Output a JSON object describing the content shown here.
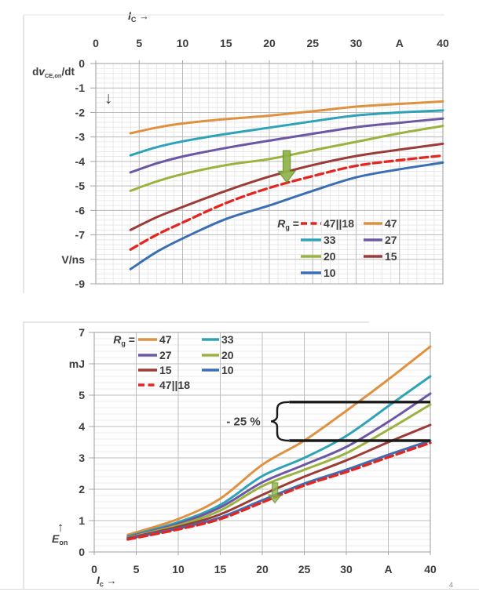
{
  "page": {
    "footnote": "4"
  },
  "chart_data": [
    {
      "id": "dvdt",
      "type": "line",
      "title": "Turn-on collector-emitter voltage slope vs collector current",
      "xlabel": {
        "main": "I",
        "sub": "C",
        "arrow": "→"
      },
      "ylabel": {
        "pre": "d",
        "var": "v",
        "sub": "CE,on",
        "post": "/dt",
        "arrow": "↓"
      },
      "y_unit": "V/ns",
      "x_axis_unit": "A",
      "xlim": [
        0,
        40
      ],
      "ylim": [
        -9,
        0
      ],
      "grid": "on",
      "x_tick_values": [
        0,
        5,
        10,
        15,
        20,
        25,
        30,
        35,
        40
      ],
      "x_tick_labels": [
        "0",
        "5",
        "10",
        "15",
        "20",
        "25",
        "30",
        "A",
        "40"
      ],
      "y_tick_values": [
        0,
        -1,
        -2,
        -3,
        -4,
        -5,
        -6,
        -7,
        -8,
        -9
      ],
      "y_tick_labels": [
        "0",
        "-1",
        "-2",
        "-3",
        "-4",
        "-5",
        "-6",
        "-7",
        "V/ns",
        "-9"
      ],
      "legend": {
        "title": {
          "var": "R",
          "sub": "g",
          "eq": "="
        },
        "position": "lower-right",
        "rows": [
          [
            "47||18",
            "47"
          ],
          [
            "33",
            "27"
          ],
          [
            "20",
            "15"
          ],
          [
            "10"
          ]
        ]
      },
      "x": [
        4,
        7,
        10,
        15,
        20,
        25,
        30,
        35,
        40
      ],
      "series": [
        {
          "name": "47",
          "color": "#E0913F",
          "dashed": false,
          "values": [
            -2.85,
            -2.62,
            -2.45,
            -2.27,
            -2.13,
            -1.95,
            -1.76,
            -1.65,
            -1.55
          ]
        },
        {
          "name": "33",
          "color": "#2EA3B7",
          "dashed": false,
          "values": [
            -3.75,
            -3.42,
            -3.18,
            -2.88,
            -2.62,
            -2.36,
            -2.12,
            -2.0,
            -1.92
          ]
        },
        {
          "name": "27",
          "color": "#6C57A5",
          "dashed": false,
          "values": [
            -4.45,
            -4.08,
            -3.8,
            -3.45,
            -3.15,
            -2.87,
            -2.6,
            -2.42,
            -2.25
          ]
        },
        {
          "name": "20",
          "color": "#9AB23E",
          "dashed": false,
          "values": [
            -5.2,
            -4.82,
            -4.52,
            -4.15,
            -3.9,
            -3.55,
            -3.2,
            -2.85,
            -2.55
          ]
        },
        {
          "name": "15",
          "color": "#9B3C38",
          "dashed": false,
          "values": [
            -6.8,
            -6.28,
            -5.86,
            -5.2,
            -4.62,
            -4.15,
            -3.78,
            -3.52,
            -3.28
          ]
        },
        {
          "name": "10",
          "color": "#3C6EB5",
          "dashed": false,
          "values": [
            -8.4,
            -7.7,
            -7.15,
            -6.35,
            -5.8,
            -5.2,
            -4.65,
            -4.32,
            -4.05
          ]
        },
        {
          "name": "47||18",
          "color": "#E52520",
          "dashed": true,
          "values": [
            -7.6,
            -7.0,
            -6.5,
            -5.7,
            -5.08,
            -4.6,
            -4.18,
            -3.95,
            -3.76
          ]
        }
      ],
      "draw_order": [
        "47",
        "33",
        "27",
        "20",
        "15",
        "10",
        "47||18"
      ],
      "arrow": {
        "x": 22,
        "from": -3.56,
        "to": -4.85,
        "color": "#8FB44A",
        "edge": "#6D9430"
      }
    },
    {
      "id": "eon",
      "type": "line",
      "title": "Turn-on energy vs collector current",
      "xlabel": {
        "main": "I",
        "sub": "c",
        "arrow": "→"
      },
      "ylabel": {
        "var": "E",
        "sub": "on",
        "arrow": "↑"
      },
      "y_unit": "mJ",
      "x_axis_unit": "A",
      "xlim": [
        0,
        40
      ],
      "ylim": [
        0,
        7
      ],
      "grid": "on",
      "x_tick_values": [
        0,
        5,
        10,
        15,
        20,
        25,
        30,
        35,
        40
      ],
      "x_tick_labels": [
        "0",
        "5",
        "10",
        "15",
        "20",
        "25",
        "30",
        "A",
        "40"
      ],
      "y_tick_values": [
        7,
        6,
        5,
        4,
        3,
        2,
        1,
        0
      ],
      "y_tick_labels": [
        "7",
        "mJ",
        "5",
        "4",
        "3",
        "2",
        "1",
        "0"
      ],
      "legend": {
        "title": {
          "var": "R",
          "sub": "g",
          "eq": "="
        },
        "position": "upper-left",
        "rows": [
          [
            "47",
            "33"
          ],
          [
            "27",
            "20"
          ],
          [
            "15",
            "10"
          ],
          [
            "47||18"
          ]
        ]
      },
      "x": [
        4,
        10,
        15,
        20,
        25,
        30,
        35,
        40
      ],
      "series": [
        {
          "name": "47",
          "color": "#E0913F",
          "dashed": false,
          "values": [
            0.55,
            1.05,
            1.7,
            2.78,
            3.55,
            4.5,
            5.5,
            6.55
          ]
        },
        {
          "name": "33",
          "color": "#2EA3B7",
          "dashed": false,
          "values": [
            0.5,
            0.95,
            1.5,
            2.42,
            3.0,
            3.7,
            4.65,
            5.6
          ]
        },
        {
          "name": "27",
          "color": "#6C57A5",
          "dashed": false,
          "values": [
            0.48,
            0.9,
            1.42,
            2.22,
            2.78,
            3.35,
            4.15,
            5.05
          ]
        },
        {
          "name": "20",
          "color": "#9AB23E",
          "dashed": false,
          "values": [
            0.46,
            0.85,
            1.32,
            2.1,
            2.62,
            3.15,
            3.9,
            4.7
          ]
        },
        {
          "name": "15",
          "color": "#9B3C38",
          "dashed": false,
          "values": [
            0.44,
            0.8,
            1.2,
            1.82,
            2.4,
            2.92,
            3.5,
            4.05
          ]
        },
        {
          "name": "10",
          "color": "#3C6EB5",
          "dashed": false,
          "values": [
            0.42,
            0.75,
            1.1,
            1.65,
            2.18,
            2.62,
            3.1,
            3.55
          ]
        },
        {
          "name": "47||18",
          "color": "#E52520",
          "dashed": true,
          "values": [
            0.4,
            0.72,
            1.05,
            1.58,
            2.12,
            2.55,
            3.02,
            3.48
          ]
        }
      ],
      "draw_order": [
        "47",
        "33",
        "27",
        "20",
        "15",
        "10",
        "47||18"
      ],
      "arrow": {
        "x": 21.5,
        "from": 2.2,
        "to": 1.57,
        "color": "#8FB44A",
        "edge": "#6D9430"
      },
      "annotation": {
        "text": "- 25 %",
        "lines": [
          {
            "y": 4.78,
            "x1": 23.2,
            "x2": 40
          },
          {
            "y": 3.55,
            "x1": 23.2,
            "x2": 40
          }
        ]
      }
    }
  ]
}
